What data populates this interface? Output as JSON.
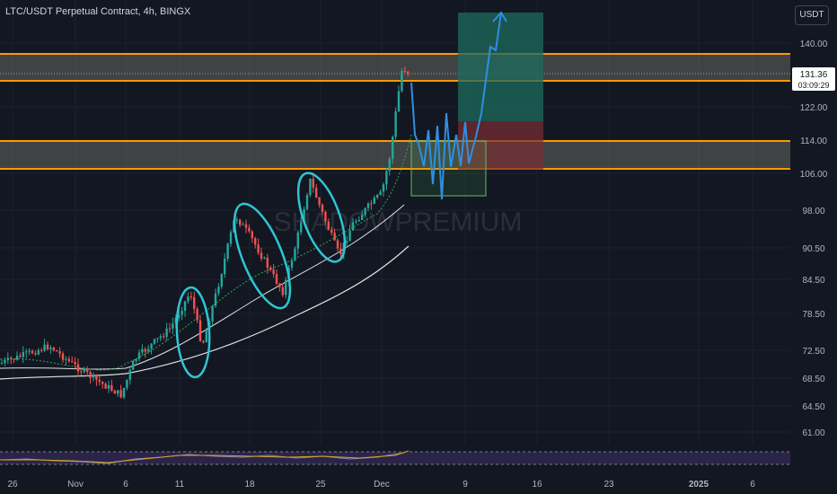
{
  "header": {
    "title": "LTC/USDT Perpetual Contract, 4h, BINGX"
  },
  "currency_button": "USDT",
  "watermark": "SHADOWPREMIUM",
  "price_tag": {
    "price": "131.36",
    "countdown": "03:09:29"
  },
  "colors": {
    "background": "#131722",
    "up": "#26a69a",
    "down": "#ef5350",
    "zone_border": "#ff9800",
    "zone_fill": "#6b6f63",
    "projection": "#2f8fe0",
    "circle": "#2ec5d3",
    "target": "#1e6b5e",
    "stop": "#7a2d33"
  },
  "chart_data": {
    "type": "candlestick",
    "title": "LTC/USDT Perpetual Contract, 4h, BINGX",
    "yaxis": {
      "scale": "log",
      "ticks": [
        "140.00",
        "122.00",
        "114.00",
        "106.00",
        "98.00",
        "90.50",
        "84.50",
        "78.50",
        "72.50",
        "68.50",
        "64.50",
        "61.00"
      ],
      "range": [
        58,
        160
      ]
    },
    "xaxis": {
      "ticks": [
        "26",
        "Nov",
        "6",
        "11",
        "18",
        "25",
        "Dec",
        "9",
        "16",
        "23",
        "2025",
        "6"
      ]
    },
    "price_series_key_points": [
      {
        "x": "26",
        "price": 71
      },
      {
        "x": "Nov",
        "price": 70
      },
      {
        "x": "6",
        "price": 66
      },
      {
        "x": "11",
        "price": 76
      },
      {
        "x": "18",
        "price": 92
      },
      {
        "x": "25",
        "price": 98
      },
      {
        "x": "Dec",
        "price": 131.36
      }
    ],
    "moving_averages": [
      "green dashed (fast)",
      "white (medium)",
      "white (slow)"
    ],
    "zones": [
      {
        "name": "upper resistance zone",
        "low": 130,
        "high": 137.5
      },
      {
        "name": "lower support zone",
        "low": 106,
        "high": 114
      }
    ],
    "position": {
      "entry": 114,
      "target": 157,
      "stop": 106
    },
    "projection_path": [
      131,
      112,
      100,
      118,
      114,
      122,
      140,
      157
    ],
    "indicator": {
      "name": "RSI",
      "type": "oscillator"
    }
  }
}
